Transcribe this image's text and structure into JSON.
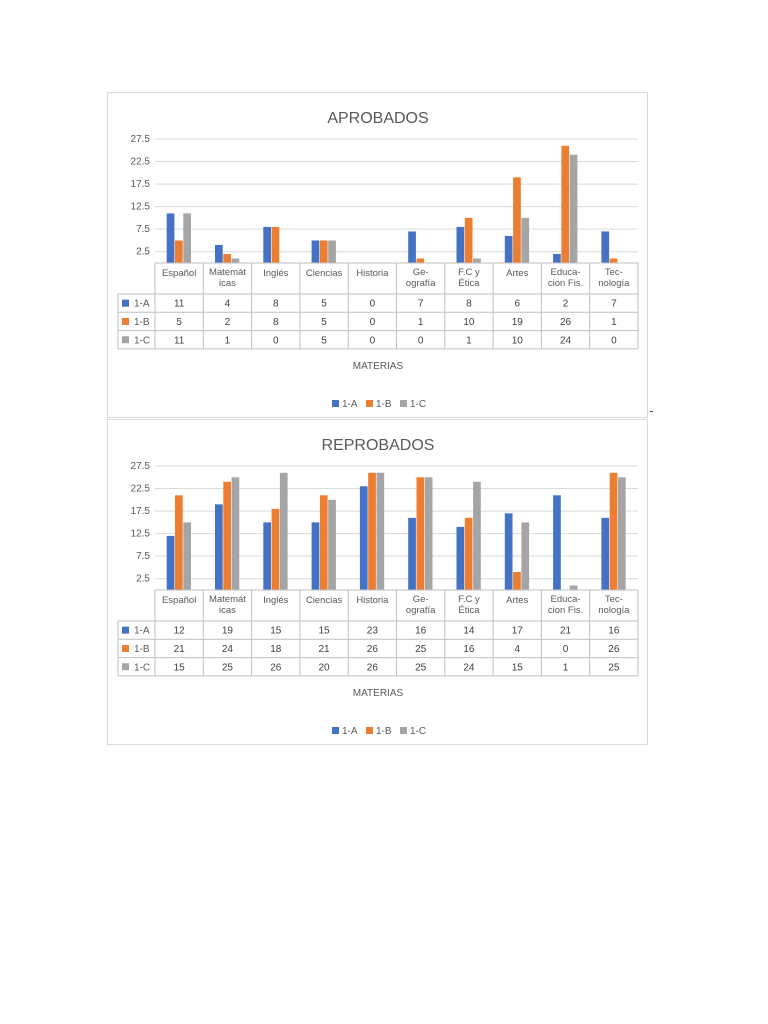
{
  "colors": {
    "series": [
      "#4472c4",
      "#ed7d31",
      "#a5a5a5"
    ]
  },
  "chart_data": [
    {
      "type": "bar",
      "title": "APROBADOS",
      "xlabel": "MATERIAS",
      "categories": [
        [
          "Español"
        ],
        [
          "Matemát",
          "icas"
        ],
        [
          "Inglés"
        ],
        [
          "Ciencias"
        ],
        [
          "Historia"
        ],
        [
          "Ge-",
          "ografía"
        ],
        [
          "F.C y",
          "Ética"
        ],
        [
          "Artes"
        ],
        [
          "Educa-",
          "cion Fis."
        ],
        [
          "Tec-",
          "nología"
        ]
      ],
      "series": [
        {
          "name": "1-A",
          "values": [
            11,
            4,
            8,
            5,
            0,
            7,
            8,
            6,
            2,
            7
          ]
        },
        {
          "name": "1-B",
          "values": [
            5,
            2,
            8,
            5,
            0,
            1,
            10,
            19,
            26,
            1
          ]
        },
        {
          "name": "1-C",
          "values": [
            11,
            1,
            0,
            5,
            0,
            0,
            1,
            10,
            24,
            0
          ]
        }
      ],
      "yticks": [
        "2.5",
        "7.5",
        "12.5",
        "17.5",
        "22.5",
        "27.5"
      ],
      "ylim": [
        0,
        27.5
      ],
      "grid": true,
      "legend": "bottom",
      "data_table": true
    },
    {
      "type": "bar",
      "title": "REPROBADOS",
      "xlabel": "MATERIAS",
      "categories": [
        [
          "Español"
        ],
        [
          "Matemát",
          "icas"
        ],
        [
          "Inglés"
        ],
        [
          "Ciencias"
        ],
        [
          "Historia"
        ],
        [
          "Ge-",
          "ografía"
        ],
        [
          "F.C y",
          "Ética"
        ],
        [
          "Artes"
        ],
        [
          "Educa-",
          "cion Fis."
        ],
        [
          "Tec-",
          "nología"
        ]
      ],
      "series": [
        {
          "name": "1-A",
          "values": [
            12,
            19,
            15,
            15,
            23,
            16,
            14,
            17,
            21,
            16
          ]
        },
        {
          "name": "1-B",
          "values": [
            21,
            24,
            18,
            21,
            26,
            25,
            16,
            4,
            0,
            26
          ]
        },
        {
          "name": "1-C",
          "values": [
            15,
            25,
            26,
            20,
            26,
            25,
            24,
            15,
            1,
            25
          ]
        }
      ],
      "yticks": [
        "2.5",
        "7.5",
        "12.5",
        "17.5",
        "22.5",
        "27.5"
      ],
      "ylim": [
        0,
        27.5
      ],
      "grid": true,
      "legend": "bottom",
      "data_table": true
    }
  ]
}
